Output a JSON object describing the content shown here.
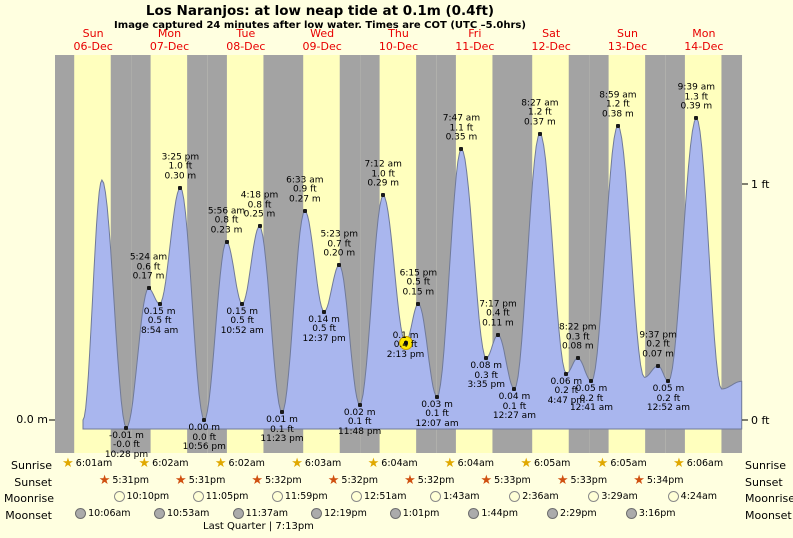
{
  "subtitle": "Image captured 24 minutes after low water. Times are COT (UTC –5.0hrs)",
  "daylight_hours": {
    "start": 6.05,
    "end": 17.54
  },
  "colors": {
    "page_background": "#ffffe0",
    "day_band": "#ffffbe",
    "night_band": "#a3a3a3",
    "tide_fill": "#a9b6ee",
    "tide_stroke": "#707a99",
    "day_label_red": "#e80000",
    "current_marker_yellow": "#ffe800",
    "sunrise_star": "#e0a800",
    "sunset_star": "#d05010"
  },
  "axis": {
    "left_label": "0.0 m",
    "right_top_label": "1 ft",
    "right_bottom_label": "0 ft"
  },
  "chart_data": {
    "type": "area",
    "title": "Los Naranjos: at low  neap tide at 0.1m (0.4ft)",
    "ylabel_left": "m",
    "ylabel_right": "ft",
    "ylim_m": [
      -0.05,
      0.45
    ],
    "grid": false,
    "x_days": [
      {
        "name": "Sun",
        "date": "06-Dec"
      },
      {
        "name": "Mon",
        "date": "07-Dec"
      },
      {
        "name": "Tue",
        "date": "08-Dec"
      },
      {
        "name": "Wed",
        "date": "09-Dec"
      },
      {
        "name": "Thu",
        "date": "10-Dec"
      },
      {
        "name": "Fri",
        "date": "11-Dec"
      },
      {
        "name": "Sat",
        "date": "12-Dec"
      },
      {
        "name": "Sun",
        "date": "13-Dec"
      },
      {
        "name": "Mon",
        "date": "14-Dec"
      }
    ],
    "tide_events": [
      {
        "day": 0,
        "hour": 22.47,
        "kind": "low",
        "time": "10:28 pm",
        "ft": "-0.0 ft",
        "m": "-0.01 m",
        "height_m": -0.01
      },
      {
        "day": 1,
        "hour": 5.4,
        "kind": "high",
        "time": "5:24 am",
        "ft": "0.6 ft",
        "m": "0.17 m",
        "height_m": 0.17
      },
      {
        "day": 1,
        "hour": 8.9,
        "kind": "low",
        "time": "8:54 am",
        "ft": "0.5 ft",
        "m": "0.15 m",
        "height_m": 0.15
      },
      {
        "day": 1,
        "hour": 15.42,
        "kind": "high",
        "time": "3:25 pm",
        "ft": "1.0 ft",
        "m": "0.30 m",
        "height_m": 0.3
      },
      {
        "day": 1,
        "hour": 22.93,
        "kind": "low",
        "time": "10:56 pm",
        "ft": "0.0 ft",
        "m": "0.00 m",
        "height_m": 0.0
      },
      {
        "day": 2,
        "hour": 5.93,
        "kind": "high",
        "time": "5:56 am",
        "ft": "0.8 ft",
        "m": "0.23 m",
        "height_m": 0.23
      },
      {
        "day": 2,
        "hour": 10.87,
        "kind": "low",
        "time": "10:52 am",
        "ft": "0.5 ft",
        "m": "0.15 m",
        "height_m": 0.15
      },
      {
        "day": 2,
        "hour": 16.3,
        "kind": "high",
        "time": "4:18 pm",
        "ft": "0.8 ft",
        "m": "0.25 m",
        "height_m": 0.25
      },
      {
        "day": 2,
        "hour": 23.38,
        "kind": "low",
        "time": "11:23 pm",
        "ft": "0.1 ft",
        "m": "0.01 m",
        "height_m": 0.01
      },
      {
        "day": 3,
        "hour": 6.55,
        "kind": "high",
        "time": "6:33 am",
        "ft": "0.9 ft",
        "m": "0.27 m",
        "height_m": 0.27
      },
      {
        "day": 3,
        "hour": 12.62,
        "kind": "low",
        "time": "12:37 pm",
        "ft": "0.5 ft",
        "m": "0.14 m",
        "height_m": 0.14
      },
      {
        "day": 3,
        "hour": 17.38,
        "kind": "high",
        "time": "5:23 pm",
        "ft": "0.7 ft",
        "m": "0.20 m",
        "height_m": 0.2
      },
      {
        "day": 3,
        "hour": 23.8,
        "kind": "low",
        "time": "11:48 pm",
        "ft": "0.1 ft",
        "m": "0.02 m",
        "height_m": 0.02
      },
      {
        "day": 4,
        "hour": 7.2,
        "kind": "high",
        "time": "7:12 am",
        "ft": "1.0 ft",
        "m": "0.29 m",
        "height_m": 0.29
      },
      {
        "day": 4,
        "hour": 14.22,
        "kind": "low",
        "time": "2:13 pm",
        "ft": "0.4 ft",
        "m": "0.1 m",
        "height_m": 0.1,
        "marked": true
      },
      {
        "day": 4,
        "hour": 18.25,
        "kind": "high",
        "time": "6:15 pm",
        "ft": "0.5 ft",
        "m": "0.15 m",
        "height_m": 0.15
      },
      {
        "day": 5,
        "hour": 0.12,
        "kind": "low",
        "time": "12:07 am",
        "ft": "0.1 ft",
        "m": "0.03 m",
        "height_m": 0.03
      },
      {
        "day": 5,
        "hour": 7.78,
        "kind": "high",
        "time": "7:47 am",
        "ft": "1.1 ft",
        "m": "0.35 m",
        "height_m": 0.35
      },
      {
        "day": 5,
        "hour": 15.58,
        "kind": "low",
        "time": "3:35 pm",
        "ft": "0.3 ft",
        "m": "0.08 m",
        "height_m": 0.08
      },
      {
        "day": 5,
        "hour": 19.28,
        "kind": "high",
        "time": "7:17 pm",
        "ft": "0.4 ft",
        "m": "0.11 m",
        "height_m": 0.11
      },
      {
        "day": 6,
        "hour": 0.45,
        "kind": "low",
        "time": "12:27 am",
        "ft": "0.1 ft",
        "m": "0.04 m",
        "height_m": 0.04
      },
      {
        "day": 6,
        "hour": 8.45,
        "kind": "high",
        "time": "8:27 am",
        "ft": "1.2 ft",
        "m": "0.37 m",
        "height_m": 0.37
      },
      {
        "day": 6,
        "hour": 16.78,
        "kind": "low",
        "time": "4:47 pm",
        "ft": "0.2 ft",
        "m": "0.06 m",
        "height_m": 0.06
      },
      {
        "day": 6,
        "hour": 20.37,
        "kind": "high",
        "time": "8:22 pm",
        "ft": "0.3 ft",
        "m": "0.08 m",
        "height_m": 0.08
      },
      {
        "day": 7,
        "hour": 0.68,
        "kind": "low",
        "time": "12:41 am",
        "ft": "0.2 ft",
        "m": "0.05 m",
        "height_m": 0.05
      },
      {
        "day": 7,
        "hour": 8.98,
        "kind": "high",
        "time": "8:59 am",
        "ft": "1.2 ft",
        "m": "0.38 m",
        "height_m": 0.38
      },
      {
        "day": 7,
        "hour": 21.62,
        "kind": "high",
        "time": "9:37 pm",
        "ft": "0.2 ft",
        "m": "0.07 m",
        "height_m": 0.07
      },
      {
        "day": 8,
        "hour": 0.87,
        "kind": "low",
        "time": "12:52 am",
        "ft": "0.2 ft",
        "m": "0.05 m",
        "height_m": 0.05
      },
      {
        "day": 8,
        "hour": 9.65,
        "kind": "high",
        "time": "9:39 am",
        "ft": "1.3 ft",
        "m": "0.39 m",
        "height_m": 0.39
      }
    ],
    "curve_edge_points": [
      {
        "day": 0,
        "hour": 8.8,
        "height_m": 0.0
      },
      {
        "day": 0,
        "hour": 14.75,
        "height_m": 0.31
      },
      {
        "day": 7,
        "hour": 17.3,
        "height_m": 0.055
      },
      {
        "day": 8,
        "hour": 17.6,
        "height_m": 0.04
      },
      {
        "day": 8,
        "hour": 23.9,
        "height_m": 0.05
      }
    ]
  },
  "astro": {
    "rows": [
      {
        "label": "Sunrise",
        "icon": "sunrise-star-icon",
        "entries": [
          {
            "day": 0,
            "hour": 6.02,
            "time": "6:01am"
          },
          {
            "day": 1,
            "hour": 6.03,
            "time": "6:02am"
          },
          {
            "day": 2,
            "hour": 6.03,
            "time": "6:02am"
          },
          {
            "day": 3,
            "hour": 6.05,
            "time": "6:03am"
          },
          {
            "day": 4,
            "hour": 6.07,
            "time": "6:04am"
          },
          {
            "day": 5,
            "hour": 6.07,
            "time": "6:04am"
          },
          {
            "day": 6,
            "hour": 6.08,
            "time": "6:05am"
          },
          {
            "day": 7,
            "hour": 6.08,
            "time": "6:05am"
          },
          {
            "day": 8,
            "hour": 6.1,
            "time": "6:06am"
          }
        ]
      },
      {
        "label": "Sunset",
        "icon": "sunset-star-icon",
        "entries": [
          {
            "day": 0,
            "hour": 17.52,
            "time": "5:31pm"
          },
          {
            "day": 1,
            "hour": 17.52,
            "time": "5:31pm"
          },
          {
            "day": 2,
            "hour": 17.53,
            "time": "5:32pm"
          },
          {
            "day": 3,
            "hour": 17.53,
            "time": "5:32pm"
          },
          {
            "day": 4,
            "hour": 17.53,
            "time": "5:32pm"
          },
          {
            "day": 5,
            "hour": 17.55,
            "time": "5:33pm"
          },
          {
            "day": 6,
            "hour": 17.55,
            "time": "5:33pm"
          },
          {
            "day": 7,
            "hour": 17.57,
            "time": "5:34pm"
          }
        ]
      },
      {
        "label": "Moonrise",
        "icon": "moonrise-circle-icon",
        "entries": [
          {
            "day": 0,
            "hour": 22.17,
            "time": "10:10pm"
          },
          {
            "day": 1,
            "hour": 23.08,
            "time": "11:05pm"
          },
          {
            "day": 2,
            "hour": 23.98,
            "time": "11:59pm"
          },
          {
            "day": 4,
            "hour": 0.85,
            "time": "12:51am"
          },
          {
            "day": 5,
            "hour": 1.72,
            "time": "1:43am"
          },
          {
            "day": 6,
            "hour": 2.6,
            "time": "2:36am"
          },
          {
            "day": 7,
            "hour": 3.48,
            "time": "3:29am"
          },
          {
            "day": 8,
            "hour": 4.4,
            "time": "4:24am"
          }
        ]
      },
      {
        "label": "Moonset",
        "icon": "moonset-circle-icon",
        "entries": [
          {
            "day": 0,
            "hour": 10.1,
            "time": "10:06am"
          },
          {
            "day": 1,
            "hour": 10.88,
            "time": "10:53am"
          },
          {
            "day": 2,
            "hour": 11.62,
            "time": "11:37am"
          },
          {
            "day": 3,
            "hour": 12.32,
            "time": "12:19pm"
          },
          {
            "day": 4,
            "hour": 13.02,
            "time": "1:01pm"
          },
          {
            "day": 5,
            "hour": 13.73,
            "time": "1:44pm"
          },
          {
            "day": 6,
            "hour": 14.48,
            "time": "2:29pm"
          },
          {
            "day": 7,
            "hour": 15.27,
            "time": "3:16pm"
          }
        ]
      }
    ],
    "footnote": "Last Quarter | 7:13pm"
  }
}
